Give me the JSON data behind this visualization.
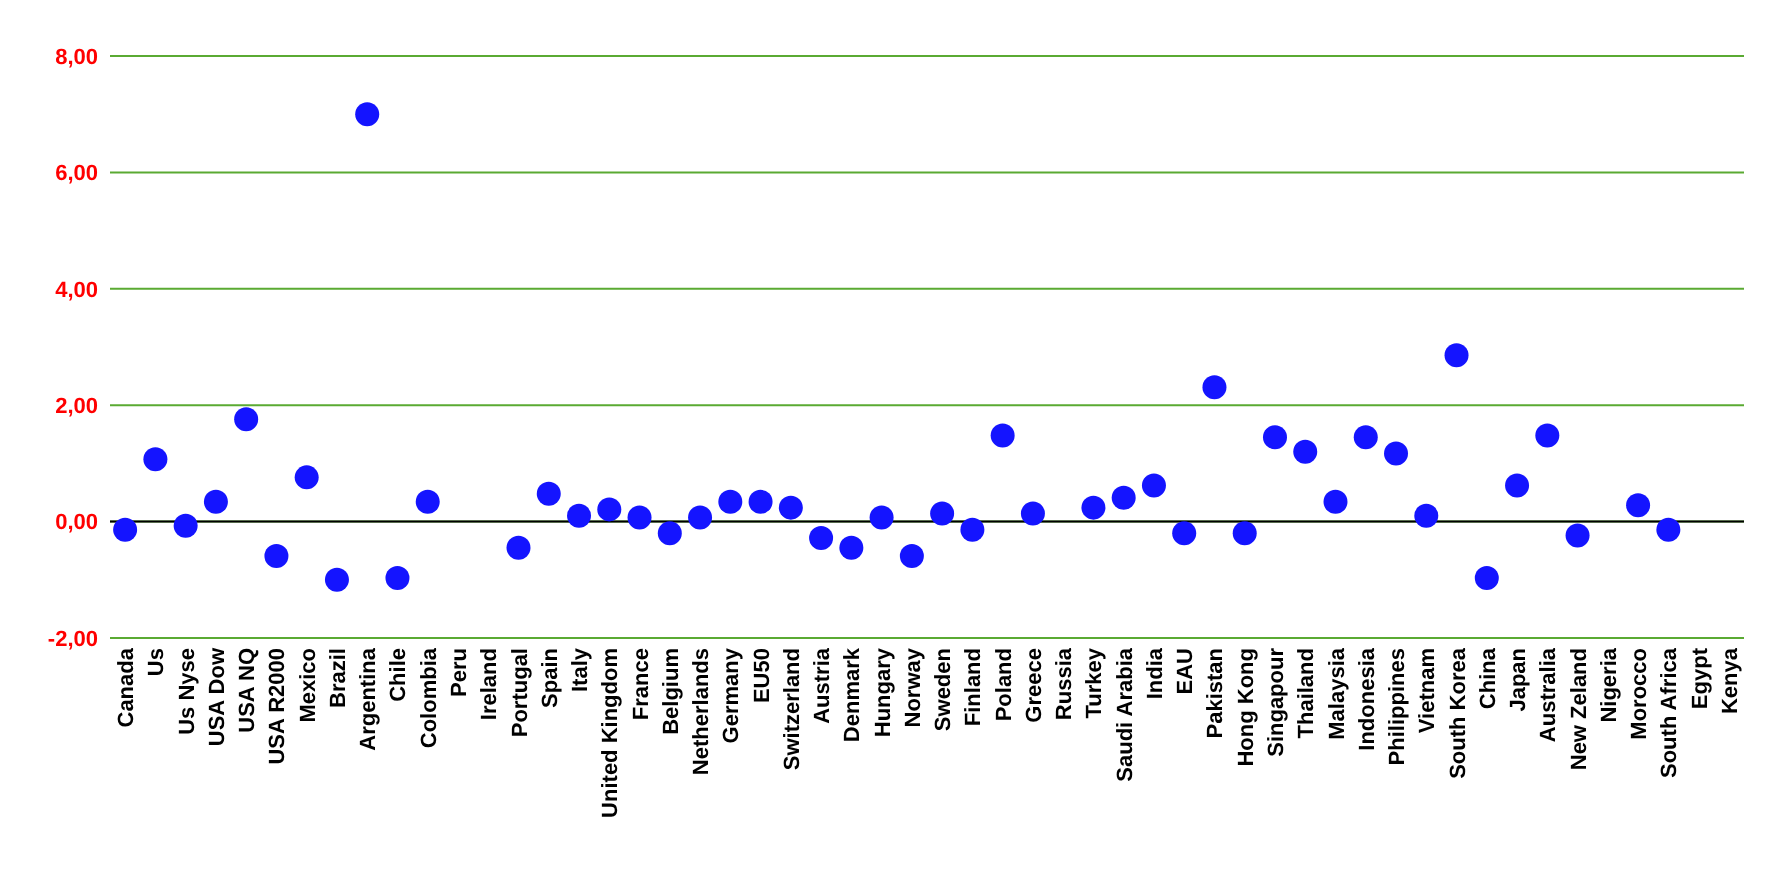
{
  "chart_data": {
    "type": "scatter",
    "categories": [
      "Canada",
      "Us",
      "Us Nyse",
      "USA Dow",
      "USA NQ",
      "USA R2000",
      "Mexico",
      "Brazil",
      "Argentina",
      "Chile",
      "Colombia",
      "Peru",
      "Ireland",
      "Portugal",
      "Spain",
      "Italy",
      "United Kingdom",
      "France",
      "Belgium",
      "Netherlands",
      "Germany",
      "EU50",
      "Switzerland",
      "Austria",
      "Denmark",
      "Hungary",
      "Norway",
      "Sweden",
      "Finland",
      "Poland",
      "Greece",
      "Russia",
      "Turkey",
      "Saudi Arabia",
      "India",
      "EAU",
      "Pakistan",
      "Hong Kong",
      "Singapour",
      "Thailand",
      "Malaysia",
      "Indonesia",
      "Philippines",
      "Vietnam",
      "South Korea",
      "China",
      "Japan",
      "Australia",
      "New Zeland",
      "Nigeria",
      "Morocco",
      "South Africa",
      "Egypt",
      "Kenya"
    ],
    "values": [
      -0.14,
      1.07,
      -0.07,
      0.34,
      1.76,
      -0.59,
      0.76,
      -1.0,
      7.0,
      -0.97,
      0.34,
      null,
      null,
      -0.45,
      0.48,
      0.1,
      0.21,
      0.07,
      -0.2,
      0.07,
      0.34,
      0.34,
      0.24,
      -0.28,
      -0.45,
      0.07,
      -0.59,
      0.14,
      -0.14,
      1.48,
      0.14,
      null,
      0.24,
      0.41,
      0.62,
      -0.2,
      2.31,
      -0.2,
      1.45,
      1.2,
      0.34,
      1.45,
      1.17,
      0.1,
      2.86,
      -0.97,
      0.62,
      1.48,
      -0.24,
      null,
      0.28,
      -0.14,
      null,
      null
    ],
    "color": "#1414ff",
    "marker": "circle",
    "ylim": [
      -2,
      8
    ],
    "yticks": [
      {
        "value": -2,
        "label": "-2,00"
      },
      {
        "value": 0,
        "label": "0,00"
      },
      {
        "value": 2,
        "label": "2,00"
      },
      {
        "value": 4,
        "label": "4,00"
      },
      {
        "value": 6,
        "label": "6,00"
      },
      {
        "value": 8,
        "label": "8,00"
      }
    ],
    "grid": "y",
    "ref_lines": [
      {
        "axis": "y",
        "value": 0,
        "color": "#000000"
      }
    ]
  }
}
